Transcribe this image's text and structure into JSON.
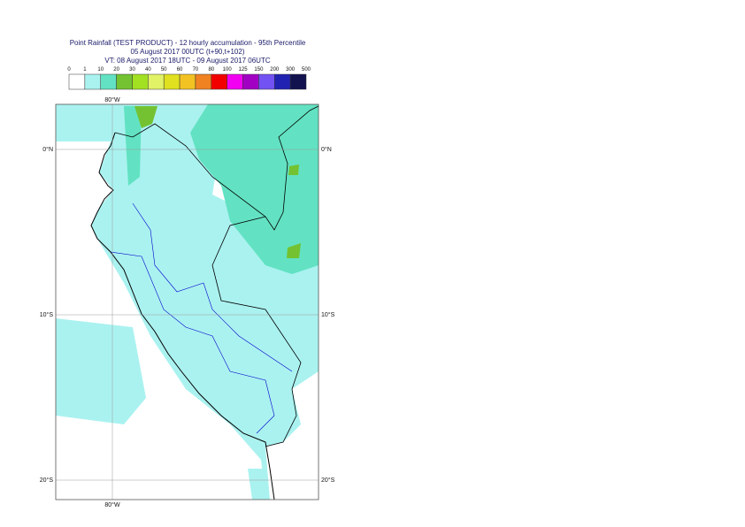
{
  "header": {
    "title": [
      "Point Rainfall (TEST PRODUCT) - 12 hourly accumulation - 95th Percentile",
      "05 August 2017 00UTC (t+90,t+102)",
      "VT: 08 August 2017 18UTC - 09 August 2017 06UTC"
    ]
  },
  "legend": {
    "labels": [
      "0",
      "1",
      "10",
      "20",
      "30",
      "40",
      "50",
      "60",
      "70",
      "80",
      "100",
      "125",
      "150",
      "200",
      "300",
      "500"
    ],
    "colors": [
      "#ffffff",
      "#aaf2f0",
      "#62e2c2",
      "#74c232",
      "#a2e022",
      "#e2f266",
      "#e0e020",
      "#f2c222",
      "#f08222",
      "#f20000",
      "#f200f2",
      "#a200c2",
      "#7252f2",
      "#2222b2",
      "#12124e"
    ]
  },
  "map": {
    "lon_label": "80°W",
    "lat_labels": [
      "0°N",
      "10°S",
      "20°S"
    ]
  }
}
